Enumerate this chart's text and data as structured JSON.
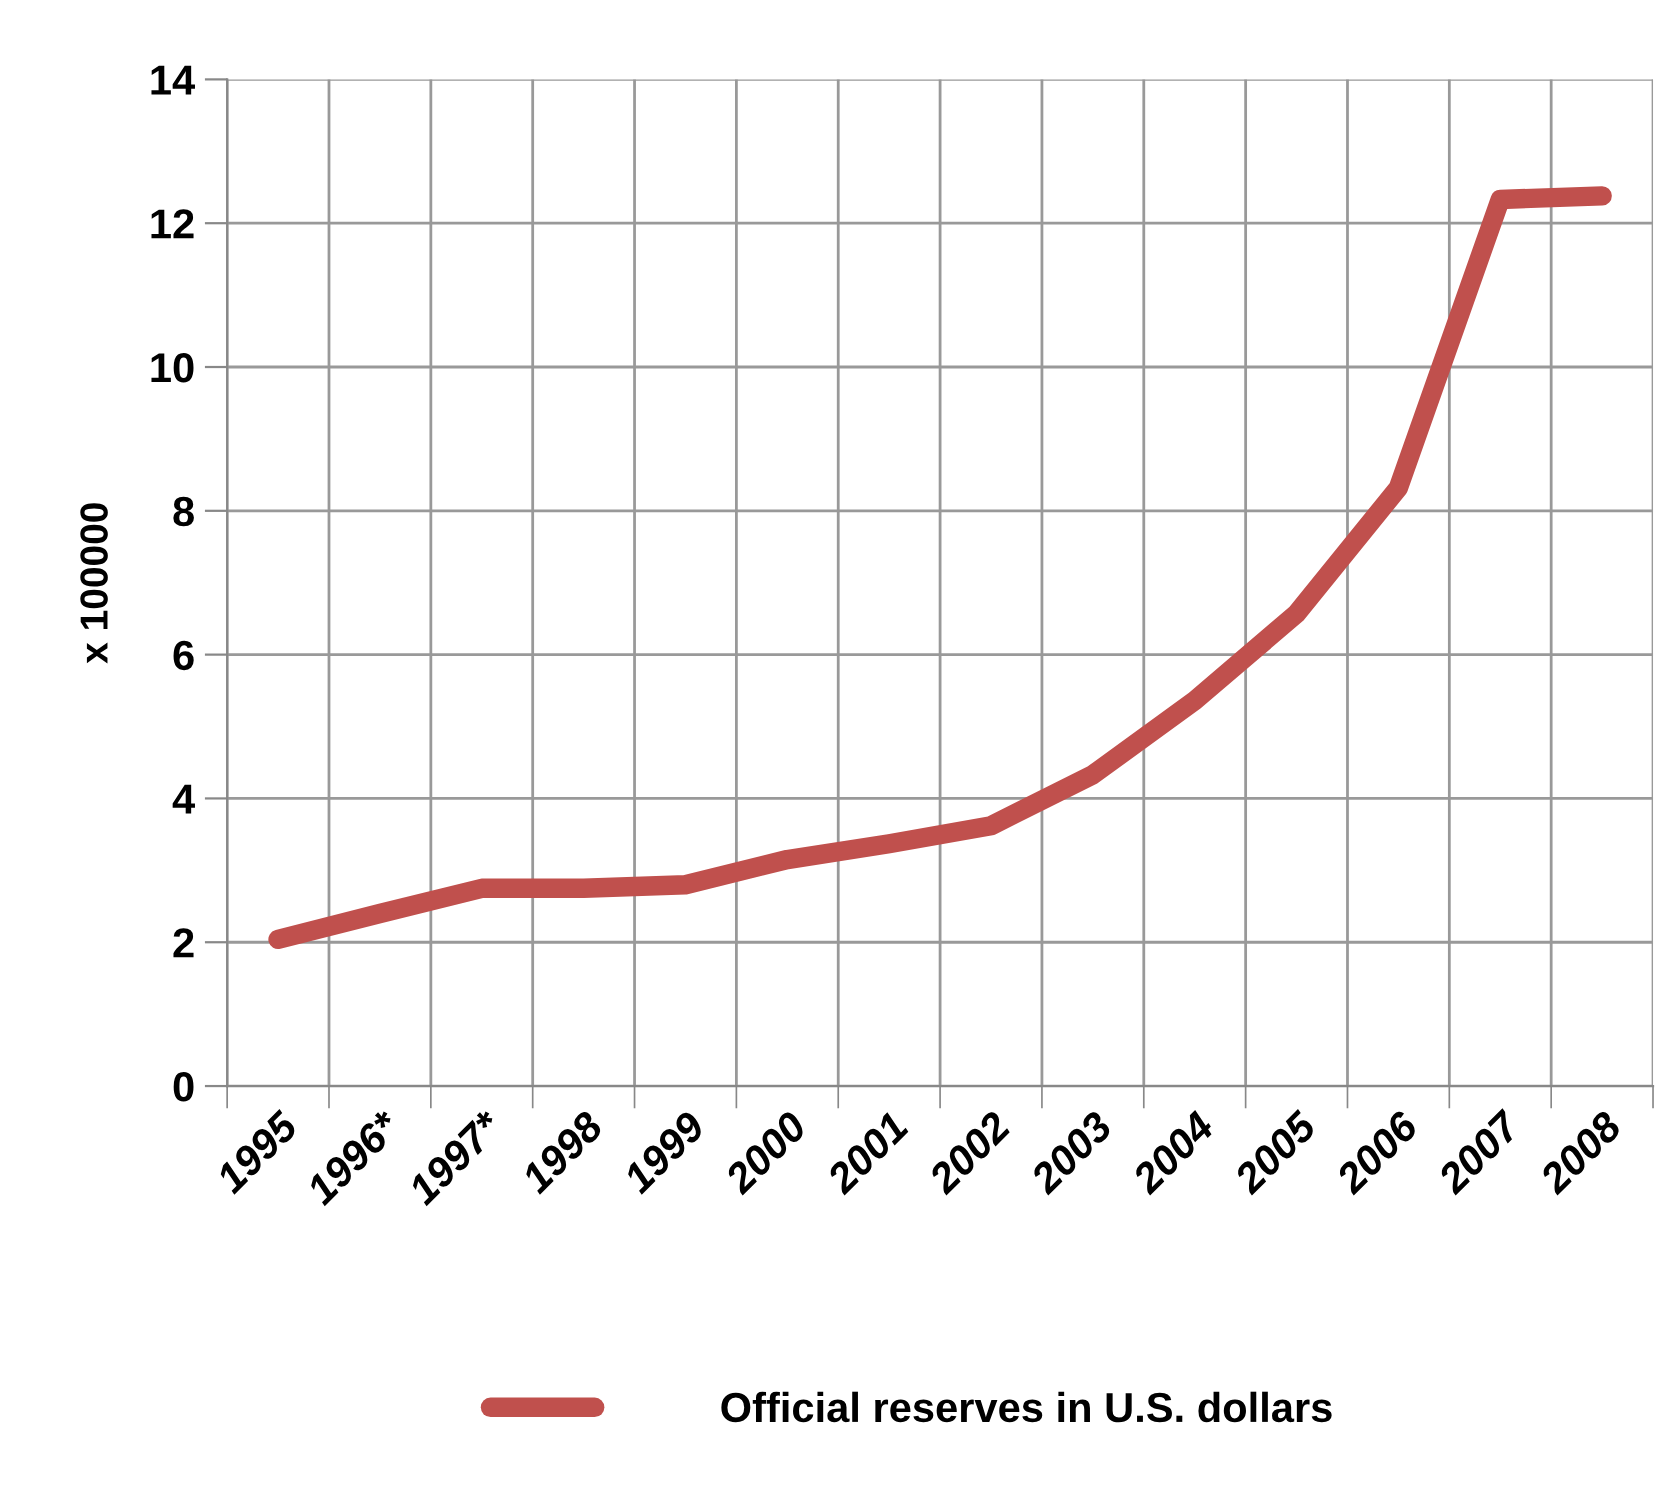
{
  "chart_data": {
    "type": "line",
    "ylabel": "x 100000",
    "categories": [
      "1995",
      "1996*",
      "1997*",
      "1998",
      "1999",
      "2000",
      "2001",
      "2002",
      "2003",
      "2004",
      "2005",
      "2006",
      "2007",
      "2008"
    ],
    "series": [
      {
        "name": "Official reserves in U.S. dollars",
        "color": "#c0504d",
        "values": [
          2.04,
          2.4,
          2.75,
          2.75,
          2.8,
          3.15,
          3.37,
          3.62,
          4.33,
          5.36,
          6.57,
          8.32,
          12.33,
          12.38
        ]
      }
    ],
    "ylim": [
      0,
      14
    ],
    "yticks": [
      0,
      2,
      4,
      6,
      8,
      10,
      12,
      14
    ],
    "grid": true,
    "legend": "bottom",
    "marker": "none",
    "line_style": "solid"
  }
}
